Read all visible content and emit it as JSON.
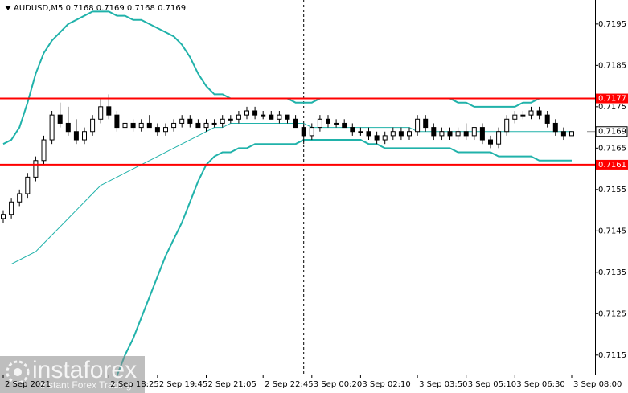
{
  "chart_data": {
    "type": "candlestick",
    "title": "AUDUSD,M5  0.7168 0.7169 0.7168 0.7169",
    "open": [
      0.7148,
      0.7149,
      0.7152,
      0.7154,
      0.7158,
      0.7162,
      0.7167,
      0.7173,
      0.7171,
      0.7169,
      0.7167,
      0.7169,
      0.7172,
      0.7175,
      0.7173,
      0.717,
      0.7171,
      0.717,
      0.7171,
      0.717,
      0.7169,
      0.717,
      0.7171,
      0.7172,
      0.7171,
      0.717,
      0.7171,
      0.7171,
      0.7172,
      0.7172,
      0.7173,
      0.7174,
      0.7173,
      0.7173,
      0.7172,
      0.7173,
      0.7172,
      0.717,
      0.7168,
      0.717,
      0.7172,
      0.7171,
      0.7171,
      0.717,
      0.7169,
      0.7169,
      0.7168,
      0.7167,
      0.7168,
      0.7169,
      0.7168,
      0.7169,
      0.7172,
      0.717,
      0.7168,
      0.7169,
      0.7168,
      0.7169,
      0.7168,
      0.717,
      0.7167,
      0.7166,
      0.7169,
      0.7172,
      0.7173,
      0.7173,
      0.7174,
      0.7173,
      0.7171,
      0.7169,
      0.7168
    ],
    "high": [
      0.715,
      0.7153,
      0.7155,
      0.7159,
      0.7163,
      0.7168,
      0.7174,
      0.7176,
      0.7175,
      0.7172,
      0.717,
      0.7173,
      0.7177,
      0.7178,
      0.7174,
      0.7172,
      0.7172,
      0.7172,
      0.7173,
      0.7171,
      0.7171,
      0.7172,
      0.7173,
      0.7173,
      0.7172,
      0.7172,
      0.7172,
      0.7173,
      0.7173,
      0.7174,
      0.7175,
      0.7175,
      0.7174,
      0.7174,
      0.7174,
      0.7173,
      0.7173,
      0.7171,
      0.7171,
      0.7173,
      0.7173,
      0.7172,
      0.7172,
      0.7171,
      0.717,
      0.717,
      0.7169,
      0.7169,
      0.717,
      0.717,
      0.717,
      0.7173,
      0.7173,
      0.7171,
      0.717,
      0.717,
      0.717,
      0.7171,
      0.717,
      0.7171,
      0.7168,
      0.717,
      0.7173,
      0.7174,
      0.7174,
      0.7175,
      0.7175,
      0.7174,
      0.7172,
      0.717,
      0.7169
    ],
    "low": [
      0.7147,
      0.7148,
      0.7151,
      0.7153,
      0.7157,
      0.7161,
      0.7166,
      0.717,
      0.7168,
      0.7166,
      0.7166,
      0.7168,
      0.7171,
      0.7172,
      0.7169,
      0.7169,
      0.7169,
      0.7169,
      0.717,
      0.7168,
      0.7168,
      0.7169,
      0.717,
      0.717,
      0.717,
      0.7169,
      0.717,
      0.717,
      0.7171,
      0.7171,
      0.7172,
      0.7172,
      0.7172,
      0.7172,
      0.7171,
      0.7171,
      0.717,
      0.7166,
      0.7167,
      0.7169,
      0.717,
      0.717,
      0.717,
      0.7168,
      0.7168,
      0.7167,
      0.7166,
      0.7166,
      0.7167,
      0.7167,
      0.7167,
      0.7168,
      0.7169,
      0.7167,
      0.7167,
      0.7167,
      0.7167,
      0.7167,
      0.7167,
      0.7166,
      0.7165,
      0.7165,
      0.7168,
      0.7171,
      0.7172,
      0.7172,
      0.7172,
      0.717,
      0.7168,
      0.7167,
      0.7168
    ],
    "close": [
      0.7149,
      0.7152,
      0.7154,
      0.7158,
      0.7162,
      0.7167,
      0.7173,
      0.7171,
      0.7169,
      0.7167,
      0.7169,
      0.7172,
      0.7175,
      0.7173,
      0.717,
      0.7171,
      0.717,
      0.7171,
      0.717,
      0.7169,
      0.717,
      0.7171,
      0.7172,
      0.7171,
      0.717,
      0.7171,
      0.7171,
      0.7172,
      0.7172,
      0.7173,
      0.7174,
      0.7173,
      0.7173,
      0.7172,
      0.7173,
      0.7172,
      0.717,
      0.7168,
      0.717,
      0.7172,
      0.7171,
      0.7171,
      0.717,
      0.7169,
      0.7169,
      0.7168,
      0.7167,
      0.7168,
      0.7169,
      0.7168,
      0.7169,
      0.7172,
      0.717,
      0.7168,
      0.7169,
      0.7168,
      0.7169,
      0.7168,
      0.717,
      0.7167,
      0.7166,
      0.7169,
      0.7172,
      0.7173,
      0.7173,
      0.7174,
      0.7173,
      0.7171,
      0.7169,
      0.7168,
      0.7169
    ],
    "indicator_lines": [
      {
        "color": "#20b2aa",
        "width": 2,
        "values": [
          0.7166,
          0.7167,
          0.717,
          0.7176,
          0.7183,
          0.7188,
          0.7191,
          0.7193,
          0.7195,
          0.7196,
          0.7197,
          0.7198,
          0.7198,
          0.7198,
          0.7197,
          0.7197,
          0.7196,
          0.7196,
          0.7195,
          0.7194,
          0.7193,
          0.7192,
          0.719,
          0.7187,
          0.7183,
          0.718,
          0.7178,
          0.7178,
          0.7177,
          0.7177,
          0.7177,
          0.7177,
          0.7177,
          0.7177,
          0.7177,
          0.7177,
          0.7176,
          0.7176,
          0.7176,
          0.7177,
          0.7177,
          0.7177,
          0.7177,
          0.7177,
          0.7177,
          0.7177,
          0.7177,
          0.7177,
          0.7177,
          0.7177,
          0.7177,
          0.7177,
          0.7177,
          0.7177,
          0.7177,
          0.7177,
          0.7176,
          0.7176,
          0.7175,
          0.7175,
          0.7175,
          0.7175,
          0.7175,
          0.7175,
          0.7176,
          0.7176,
          0.7177,
          0.7177,
          0.7177,
          0.7177,
          0.7177
        ]
      },
      {
        "color": "#20b2aa",
        "width": 1,
        "values": [
          0.7137,
          0.7137,
          0.7138,
          0.7139,
          0.714,
          0.7142,
          0.7144,
          0.7146,
          0.7148,
          0.715,
          0.7152,
          0.7154,
          0.7156,
          0.7157,
          0.7158,
          0.7159,
          0.716,
          0.7161,
          0.7162,
          0.7163,
          0.7164,
          0.7165,
          0.7166,
          0.7167,
          0.7168,
          0.7169,
          0.717,
          0.717,
          0.7171,
          0.7171,
          0.7171,
          0.7171,
          0.7171,
          0.7171,
          0.7171,
          0.7171,
          0.7171,
          0.7171,
          0.717,
          0.717,
          0.717,
          0.717,
          0.717,
          0.717,
          0.717,
          0.717,
          0.717,
          0.717,
          0.717,
          0.717,
          0.717,
          0.7169,
          0.7169,
          0.7169,
          0.7169,
          0.7169,
          0.7169,
          0.7169,
          0.7169,
          0.7169,
          0.7169,
          0.7169,
          0.7169,
          0.7169,
          0.7169,
          0.7169,
          0.7169,
          0.7169,
          0.7169,
          0.7169,
          0.7169
        ]
      },
      {
        "color": "#20b2aa",
        "width": 2,
        "values": [
          null,
          null,
          null,
          null,
          null,
          null,
          null,
          null,
          null,
          null,
          null,
          null,
          null,
          null,
          0.711,
          0.7115,
          0.7119,
          0.7124,
          0.7129,
          0.7134,
          0.7139,
          0.7143,
          0.7147,
          0.7152,
          0.7157,
          0.7161,
          0.7163,
          0.7164,
          0.7164,
          0.7165,
          0.7165,
          0.7166,
          0.7166,
          0.7166,
          0.7166,
          0.7166,
          0.7166,
          0.7167,
          0.7167,
          0.7167,
          0.7167,
          0.7167,
          0.7167,
          0.7167,
          0.7167,
          0.7166,
          0.7166,
          0.7165,
          0.7165,
          0.7165,
          0.7165,
          0.7165,
          0.7165,
          0.7165,
          0.7165,
          0.7165,
          0.7164,
          0.7164,
          0.7164,
          0.7164,
          0.7164,
          0.7163,
          0.7163,
          0.7163,
          0.7163,
          0.7163,
          0.7162,
          0.7162,
          0.7162,
          0.7162,
          0.7162
        ]
      }
    ],
    "levels": [
      {
        "value": 0.7177,
        "color": "#ff0000"
      },
      {
        "value": 0.7161,
        "color": "#ff0000"
      }
    ],
    "last_price": 0.7169,
    "marker_index": 37,
    "ylim": [
      0.71103,
      0.72008
    ],
    "yticks": [
      0.7195,
      0.7185,
      0.7175,
      0.7165,
      0.7155,
      0.7145,
      0.7135,
      0.7125,
      0.7115
    ],
    "xticks": [
      {
        "value": 0,
        "label": "2 Sep 2021"
      },
      {
        "value": 13,
        "label": "2 Sep 18:25"
      },
      {
        "value": 19,
        "label": "2 Sep 19:45"
      },
      {
        "value": 25,
        "label": "2 Sep 21:05"
      },
      {
        "value": 32,
        "label": "2 Sep 22:45"
      },
      {
        "value": 38,
        "label": "3 Sep 00:20"
      },
      {
        "value": 44,
        "label": "3 Sep 02:10"
      },
      {
        "value": 51,
        "label": "3 Sep 03:50"
      },
      {
        "value": 57,
        "label": "3 Sep 05:10"
      },
      {
        "value": 63,
        "label": "3 Sep 06:30"
      },
      {
        "value": 70,
        "label": "3 Sep 08:00"
      }
    ],
    "watermark": {
      "brand": "instaforex",
      "tagline": "Instant Forex Trading"
    }
  }
}
